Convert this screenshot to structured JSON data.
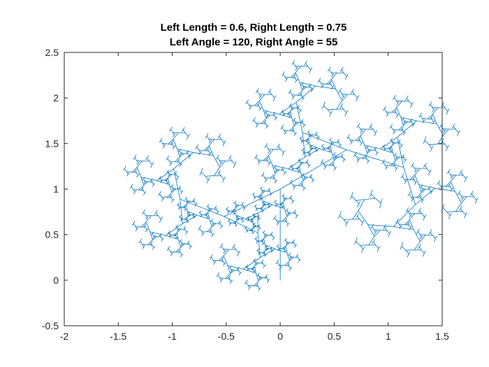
{
  "chart_data": {
    "type": "line",
    "title": [
      "Left Length = 0.6, Right Length = 0.75",
      "Left Angle = 120, Right Angle = 55"
    ],
    "xlabel": "",
    "ylabel": "",
    "xlim": [
      -2,
      1.5
    ],
    "ylim": [
      -0.5,
      2.5
    ],
    "xticks": [
      -2,
      -1.5,
      -1,
      -0.5,
      0,
      0.5,
      1,
      1.5
    ],
    "xtick_labels": [
      "-2",
      "-1.5",
      "-1",
      "-0.5",
      "0",
      "0.5",
      "1",
      "1.5"
    ],
    "yticks": [
      -0.5,
      0,
      0.5,
      1,
      1.5,
      2,
      2.5
    ],
    "ytick_labels": [
      "-0.5",
      "0",
      "0.5",
      "1",
      "1.5",
      "2",
      "2.5"
    ],
    "grid": false,
    "series": [
      {
        "kind": "binary-fractal-tree",
        "color": "#0072BD",
        "root": [
          0,
          0
        ],
        "trunk_length": 1,
        "trunk_direction_deg": 90,
        "left_length_ratio": 0.6,
        "right_length_ratio": 0.75,
        "left_angle_deg": 120,
        "right_angle_deg": 55,
        "depth": 11
      }
    ]
  }
}
